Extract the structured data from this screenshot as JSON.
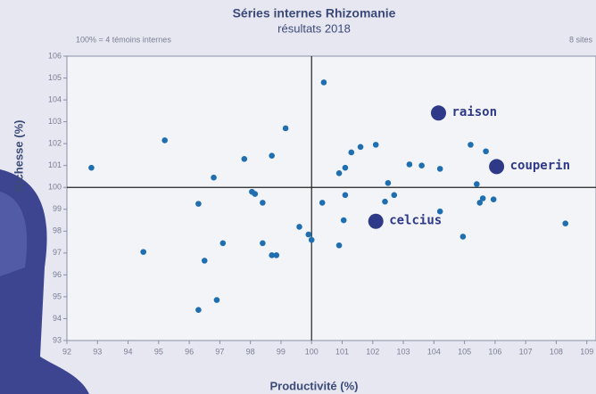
{
  "chart_data": {
    "type": "scatter",
    "title": "Séries internes Rhizomanie",
    "subtitle": "résultats 2018",
    "note_left": "100% = 4 témoins internes",
    "note_right": "8 sites",
    "x_label": "Productivité (%)",
    "y_label": "Richesse (%)",
    "xlim": [
      92,
      109.3
    ],
    "ylim": [
      93,
      106
    ],
    "xticks": [
      92,
      93,
      94,
      95,
      96,
      97,
      98,
      99,
      100,
      101,
      102,
      103,
      104,
      105,
      106,
      107,
      108,
      109
    ],
    "yticks": [
      93,
      94,
      95,
      96,
      97,
      98,
      99,
      100,
      101,
      102,
      103,
      104,
      105,
      106
    ],
    "reference_x": 100,
    "reference_y": 100,
    "color": "#1f6fb0",
    "x": [
      92.8,
      94.5,
      95.2,
      96.3,
      96.3,
      96.5,
      96.8,
      96.9,
      97.1,
      97.8,
      98.05,
      98.15,
      98.4,
      98.4,
      98.7,
      98.7,
      98.85,
      99.15,
      99.6,
      99.9,
      100.0,
      100.35,
      100.4,
      100.9,
      100.9,
      101.05,
      101.1,
      101.1,
      101.3,
      101.6,
      102.1,
      102.4,
      102.5,
      102.7,
      103.2,
      103.6,
      104.2,
      104.2,
      104.95,
      105.2,
      105.4,
      105.5,
      105.6,
      105.7,
      105.95,
      108.3
    ],
    "y": [
      100.9,
      97.05,
      102.15,
      99.25,
      94.4,
      96.65,
      100.45,
      94.85,
      97.45,
      101.3,
      99.8,
      99.7,
      99.3,
      97.45,
      101.45,
      96.9,
      96.9,
      102.7,
      98.2,
      97.85,
      97.6,
      99.3,
      104.8,
      100.65,
      97.35,
      98.5,
      99.65,
      100.9,
      101.6,
      101.85,
      101.95,
      99.35,
      100.2,
      99.65,
      101.05,
      101.0,
      100.85,
      98.9,
      97.75,
      101.95,
      100.15,
      99.3,
      99.5,
      101.65,
      99.45,
      98.35
    ],
    "highlight_color": "#2e3a87",
    "highlights": [
      {
        "label": "raison",
        "x": 104.15,
        "y": 103.4
      },
      {
        "label": "couperin",
        "x": 106.05,
        "y": 100.95
      },
      {
        "label": "celcius",
        "x": 102.1,
        "y": 98.45
      }
    ]
  }
}
